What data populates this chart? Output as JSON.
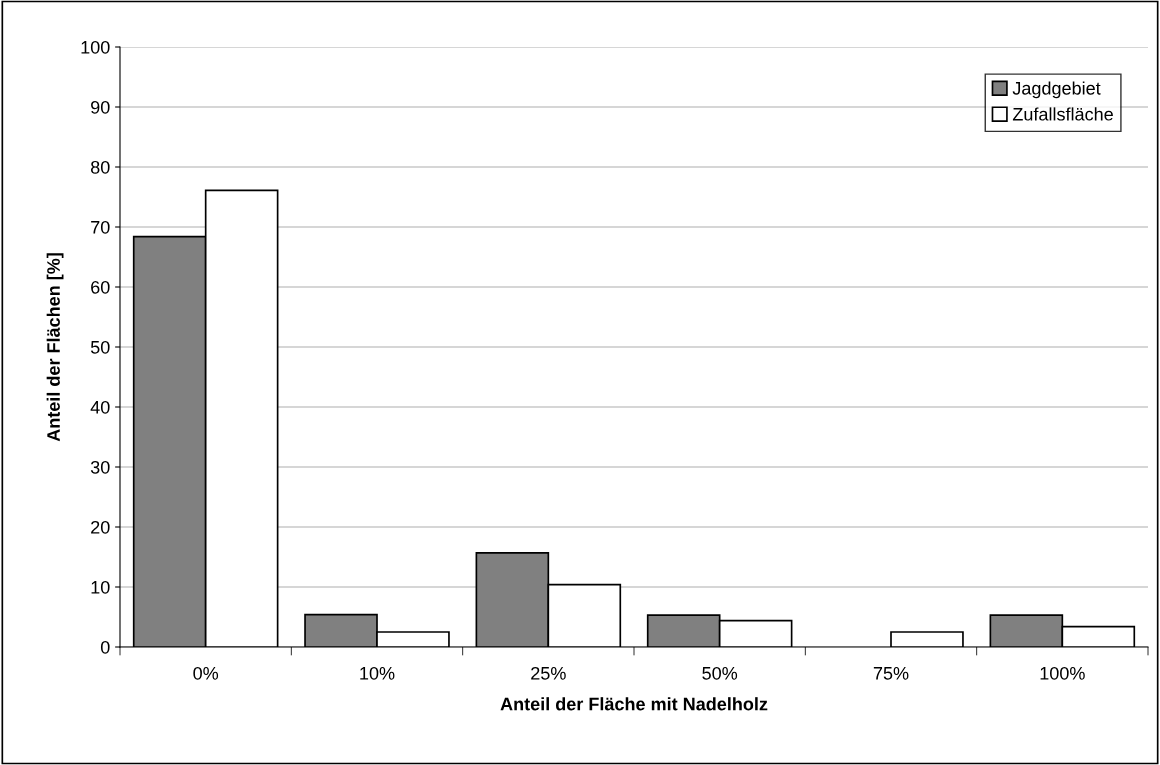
{
  "chart_data": {
    "type": "bar",
    "xlabel": "Anteil der Fläche mit Nadelholz",
    "ylabel": "Anteil der Flächen [%]",
    "categories": [
      "0%",
      "10%",
      "25%",
      "50%",
      "75%",
      "100%"
    ],
    "series": [
      {
        "name": "Jagdgebiet",
        "color": "#808080",
        "values": [
          68.4,
          5.4,
          15.7,
          5.3,
          0,
          5.3
        ]
      },
      {
        "name": "Zufallsfläche",
        "color": "#ffffff",
        "values": [
          76.1,
          2.5,
          10.4,
          4.4,
          2.5,
          3.4
        ]
      }
    ],
    "ylim": [
      0,
      100
    ],
    "yticks": [
      0,
      10,
      20,
      30,
      40,
      50,
      60,
      70,
      80,
      90,
      100
    ],
    "grid": "y",
    "legend": "top right"
  }
}
